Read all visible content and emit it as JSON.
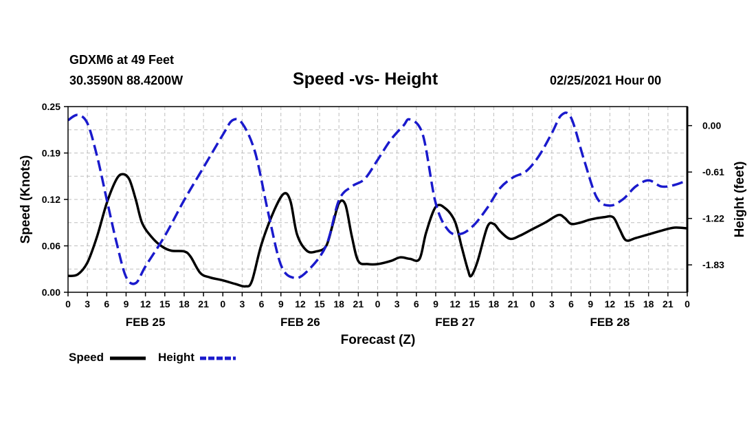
{
  "header": {
    "station": "GDXM6 at 49 Feet",
    "location": "30.3590N 88.4200W",
    "title": "Speed -vs- Height",
    "datetime": "02/25/2021 Hour 00"
  },
  "legend": {
    "speed_label": "Speed",
    "height_label": "Height"
  },
  "chart_data": {
    "type": "line",
    "title": "Speed -vs- Height",
    "xlabel": "Forecast (Z)",
    "ylabel": "Speed (Knots)",
    "y2label": "Height (feet)",
    "grid": true,
    "legend_position": "bottom-left",
    "xlim": [
      0,
      96
    ],
    "ylim": [
      0,
      0.25
    ],
    "y2lim": [
      -2.19,
      0.25
    ],
    "x_tick_labels": [
      "0",
      "3",
      "6",
      "9",
      "12",
      "15",
      "18",
      "21",
      "0",
      "3",
      "6",
      "9",
      "12",
      "15",
      "18",
      "21",
      "0",
      "3",
      "6",
      "9",
      "12",
      "15",
      "18",
      "21",
      "0",
      "3",
      "6",
      "9",
      "12",
      "15",
      "18",
      "21",
      "0"
    ],
    "day_labels": [
      {
        "label": "FEB 25",
        "x": 12
      },
      {
        "label": "FEB 26",
        "x": 36
      },
      {
        "label": "FEB 27",
        "x": 60
      },
      {
        "label": "FEB 28",
        "x": 84
      }
    ],
    "y_ticks": [
      "0.00",
      "0.06",
      "0.12",
      "0.19",
      "0.25"
    ],
    "y_tick_values": [
      0,
      0.0625,
      0.125,
      0.1875,
      0.25
    ],
    "y2_ticks": [
      "0.00",
      "-0.61",
      "-1.22",
      "-1.83"
    ],
    "y2_tick_values": [
      0.0,
      -0.61,
      -1.22,
      -1.83
    ],
    "series": [
      {
        "name": "Speed",
        "axis": "left",
        "color": "#000000",
        "style": "solid",
        "points": [
          [
            0,
            0.022
          ],
          [
            1.5,
            0.024
          ],
          [
            3,
            0.04
          ],
          [
            4.5,
            0.075
          ],
          [
            6,
            0.12
          ],
          [
            7.5,
            0.152
          ],
          [
            8.5,
            0.159
          ],
          [
            9.5,
            0.152
          ],
          [
            10.5,
            0.125
          ],
          [
            11.5,
            0.093
          ],
          [
            13,
            0.074
          ],
          [
            14.5,
            0.062
          ],
          [
            16,
            0.056
          ],
          [
            18,
            0.055
          ],
          [
            19,
            0.048
          ],
          [
            20.5,
            0.026
          ],
          [
            22,
            0.02
          ],
          [
            24,
            0.016
          ],
          [
            26,
            0.011
          ],
          [
            27.5,
            0.008
          ],
          [
            28.5,
            0.015
          ],
          [
            30,
            0.065
          ],
          [
            32,
            0.111
          ],
          [
            33.5,
            0.133
          ],
          [
            34.5,
            0.122
          ],
          [
            35.5,
            0.078
          ],
          [
            37,
            0.056
          ],
          [
            38.5,
            0.055
          ],
          [
            40,
            0.062
          ],
          [
            41,
            0.09
          ],
          [
            42,
            0.12
          ],
          [
            43,
            0.118
          ],
          [
            44,
            0.075
          ],
          [
            45,
            0.042
          ],
          [
            46.5,
            0.038
          ],
          [
            48,
            0.038
          ],
          [
            50,
            0.042
          ],
          [
            51.5,
            0.047
          ],
          [
            53,
            0.045
          ],
          [
            54.5,
            0.045
          ],
          [
            55.5,
            0.08
          ],
          [
            57,
            0.115
          ],
          [
            58.5,
            0.113
          ],
          [
            60,
            0.095
          ],
          [
            61,
            0.062
          ],
          [
            62,
            0.03
          ],
          [
            62.5,
            0.022
          ],
          [
            63.5,
            0.042
          ],
          [
            65,
            0.088
          ],
          [
            66,
            0.092
          ],
          [
            67,
            0.082
          ],
          [
            68.5,
            0.072
          ],
          [
            70,
            0.076
          ],
          [
            72,
            0.085
          ],
          [
            74,
            0.094
          ],
          [
            76,
            0.104
          ],
          [
            77,
            0.1
          ],
          [
            78,
            0.092
          ],
          [
            79.5,
            0.094
          ],
          [
            81,
            0.098
          ],
          [
            83,
            0.101
          ],
          [
            84.5,
            0.101
          ],
          [
            85.5,
            0.085
          ],
          [
            86.5,
            0.07
          ],
          [
            88,
            0.073
          ],
          [
            90,
            0.078
          ],
          [
            92,
            0.083
          ],
          [
            94,
            0.087
          ],
          [
            96,
            0.086
          ]
        ]
      },
      {
        "name": "Height",
        "axis": "right",
        "color": "#1a1acc",
        "style": "dashed",
        "points": [
          [
            0,
            0.07
          ],
          [
            1.5,
            0.14
          ],
          [
            3,
            0.03
          ],
          [
            4.5,
            -0.4
          ],
          [
            6,
            -0.97
          ],
          [
            7.5,
            -1.53
          ],
          [
            9,
            -1.99
          ],
          [
            10.5,
            -2.07
          ],
          [
            12,
            -1.85
          ],
          [
            15,
            -1.45
          ],
          [
            18,
            -0.98
          ],
          [
            21,
            -0.55
          ],
          [
            24,
            -0.12
          ],
          [
            25.5,
            0.07
          ],
          [
            27,
            0.03
          ],
          [
            29,
            -0.35
          ],
          [
            31,
            -1.13
          ],
          [
            33,
            -1.83
          ],
          [
            35,
            -2.0
          ],
          [
            37,
            -1.92
          ],
          [
            40,
            -1.58
          ],
          [
            42,
            -0.98
          ],
          [
            44,
            -0.8
          ],
          [
            46,
            -0.7
          ],
          [
            48,
            -0.45
          ],
          [
            50,
            -0.19
          ],
          [
            52,
            0.0
          ],
          [
            53,
            0.08
          ],
          [
            55,
            -0.12
          ],
          [
            57,
            -1.02
          ],
          [
            59,
            -1.38
          ],
          [
            61,
            -1.42
          ],
          [
            63,
            -1.3
          ],
          [
            65,
            -1.08
          ],
          [
            67,
            -0.82
          ],
          [
            69,
            -0.68
          ],
          [
            71,
            -0.6
          ],
          [
            73,
            -0.4
          ],
          [
            75,
            -0.1
          ],
          [
            76.5,
            0.14
          ],
          [
            78,
            0.1
          ],
          [
            80,
            -0.45
          ],
          [
            82,
            -0.95
          ],
          [
            84,
            -1.05
          ],
          [
            86,
            -0.97
          ],
          [
            88,
            -0.8
          ],
          [
            90,
            -0.72
          ],
          [
            92,
            -0.8
          ],
          [
            94,
            -0.78
          ],
          [
            96,
            -0.72
          ]
        ]
      }
    ]
  }
}
